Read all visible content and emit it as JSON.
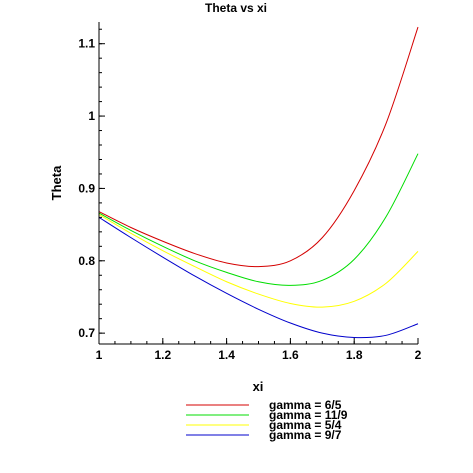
{
  "chart_data": {
    "type": "line",
    "title": "Theta vs xi",
    "xlabel": "xi",
    "ylabel": "Theta",
    "xlim": [
      1,
      2
    ],
    "ylim": [
      0.685,
      1.13
    ],
    "xticks": [
      1,
      1.2,
      1.4,
      1.6,
      1.8,
      2
    ],
    "xtick_labels": [
      "1",
      "1.2",
      "1.4",
      "1.6",
      "1.8",
      "2"
    ],
    "yticks": [
      0.7,
      0.8,
      0.9,
      1.0,
      1.1
    ],
    "ytick_labels": [
      "0.7",
      "0.8",
      "0.9",
      "1",
      "1.1"
    ],
    "grid": false,
    "legend_position": "bottom",
    "series": [
      {
        "name": "gamma = 6/5",
        "color": "#d40000",
        "x": [
          1.0,
          1.1,
          1.2,
          1.3,
          1.4,
          1.5,
          1.6,
          1.7,
          1.8,
          1.9,
          2.0
        ],
        "y": [
          0.868,
          0.846,
          0.827,
          0.81,
          0.797,
          0.792,
          0.8,
          0.832,
          0.897,
          0.99,
          1.123
        ]
      },
      {
        "name": "gamma = 11/9",
        "color": "#00dd00",
        "x": [
          1.0,
          1.1,
          1.2,
          1.3,
          1.4,
          1.5,
          1.6,
          1.7,
          1.8,
          1.9,
          2.0
        ],
        "y": [
          0.866,
          0.842,
          0.82,
          0.8,
          0.784,
          0.771,
          0.766,
          0.773,
          0.802,
          0.861,
          0.948
        ]
      },
      {
        "name": "gamma = 5/4",
        "color": "#ffff00",
        "x": [
          1.0,
          1.1,
          1.2,
          1.3,
          1.4,
          1.5,
          1.6,
          1.7,
          1.8,
          1.9,
          2.0
        ],
        "y": [
          0.864,
          0.838,
          0.814,
          0.792,
          0.771,
          0.754,
          0.741,
          0.736,
          0.744,
          0.769,
          0.813
        ]
      },
      {
        "name": "gamma = 9/7",
        "color": "#0000cc",
        "x": [
          1.0,
          1.1,
          1.2,
          1.3,
          1.4,
          1.5,
          1.6,
          1.7,
          1.8,
          1.9,
          2.0
        ],
        "y": [
          0.86,
          0.832,
          0.805,
          0.779,
          0.755,
          0.733,
          0.714,
          0.7,
          0.694,
          0.697,
          0.713
        ]
      }
    ]
  }
}
